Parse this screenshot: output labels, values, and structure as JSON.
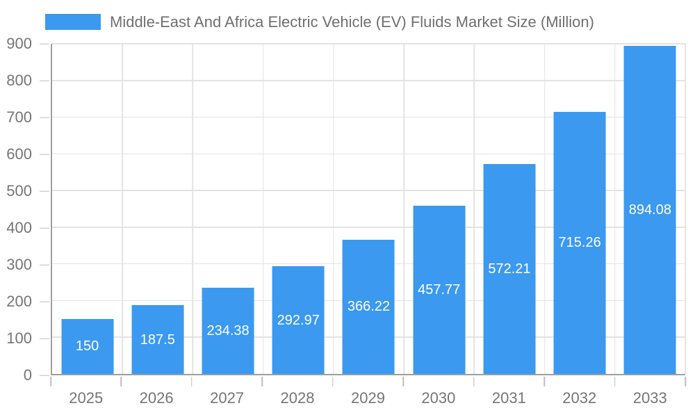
{
  "chart_data": {
    "type": "bar",
    "title": "Middle-East And Africa Electric Vehicle (EV) Fluids Market Size (Million)",
    "categories": [
      "2025",
      "2026",
      "2027",
      "2028",
      "2029",
      "2030",
      "2031",
      "2032",
      "2033"
    ],
    "values": [
      150,
      187.5,
      234.38,
      292.97,
      366.22,
      457.77,
      572.21,
      715.26,
      894.08
    ],
    "bar_labels": [
      "150",
      "187.5",
      "234.38",
      "292.97",
      "366.22",
      "457.77",
      "572.21",
      "715.26",
      "894.08"
    ],
    "y_ticks": [
      0,
      100,
      200,
      300,
      400,
      500,
      600,
      700,
      800,
      900
    ],
    "ylim": [
      0,
      900
    ],
    "xlabel": "",
    "ylabel": "",
    "legend_position": "top-left",
    "grid": true,
    "colors": {
      "bar": "#3B99EF",
      "grid": "#E3E3E3",
      "axis": "#9E9E9E",
      "tick": "#BDBDBD",
      "axis_text": "#757575",
      "title_text": "#6F6F6F",
      "bar_label_text": "#FFFFFF",
      "background": "#FFFFFF"
    }
  }
}
